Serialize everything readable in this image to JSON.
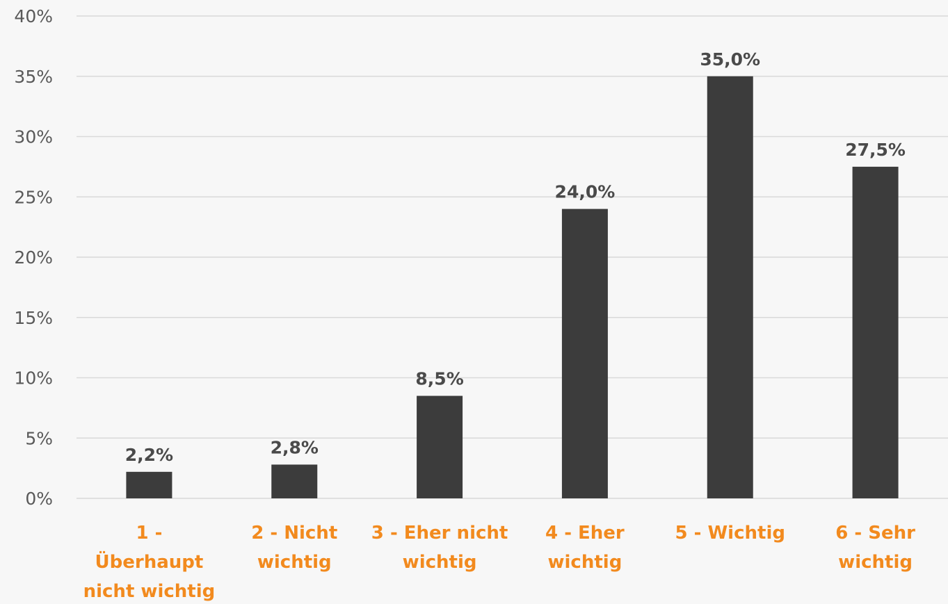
{
  "chart_data": {
    "type": "bar",
    "categories": [
      [
        "1 -",
        "Überhaupt",
        "nicht wichtig"
      ],
      [
        "2 - Nicht",
        "wichtig"
      ],
      [
        "3 - Eher nicht",
        "wichtig"
      ],
      [
        "4 - Eher",
        "wichtig"
      ],
      [
        "5 - Wichtig"
      ],
      [
        "6 - Sehr",
        "wichtig"
      ]
    ],
    "values": [
      2.2,
      2.8,
      8.5,
      24.0,
      35.0,
      27.5
    ],
    "data_labels": [
      "2,2%",
      "2,8%",
      "8,5%",
      "24,0%",
      "35,0%",
      "27,5%"
    ],
    "y_ticks": [
      0,
      5,
      10,
      15,
      20,
      25,
      30,
      35,
      40
    ],
    "y_tick_labels": [
      "0%",
      "5%",
      "10%",
      "15%",
      "20%",
      "25%",
      "30%",
      "35%",
      "40%"
    ],
    "ylim": [
      0,
      40
    ],
    "title": "",
    "xlabel": "",
    "ylabel": "",
    "grid": true,
    "legend": "none",
    "colors": {
      "bar": "#3c3c3c",
      "category_label": "#f28a1e",
      "data_label": "#4a4a4a",
      "tick_label": "#595959",
      "grid": "#d9d9d9",
      "background": "#f7f7f7"
    }
  }
}
